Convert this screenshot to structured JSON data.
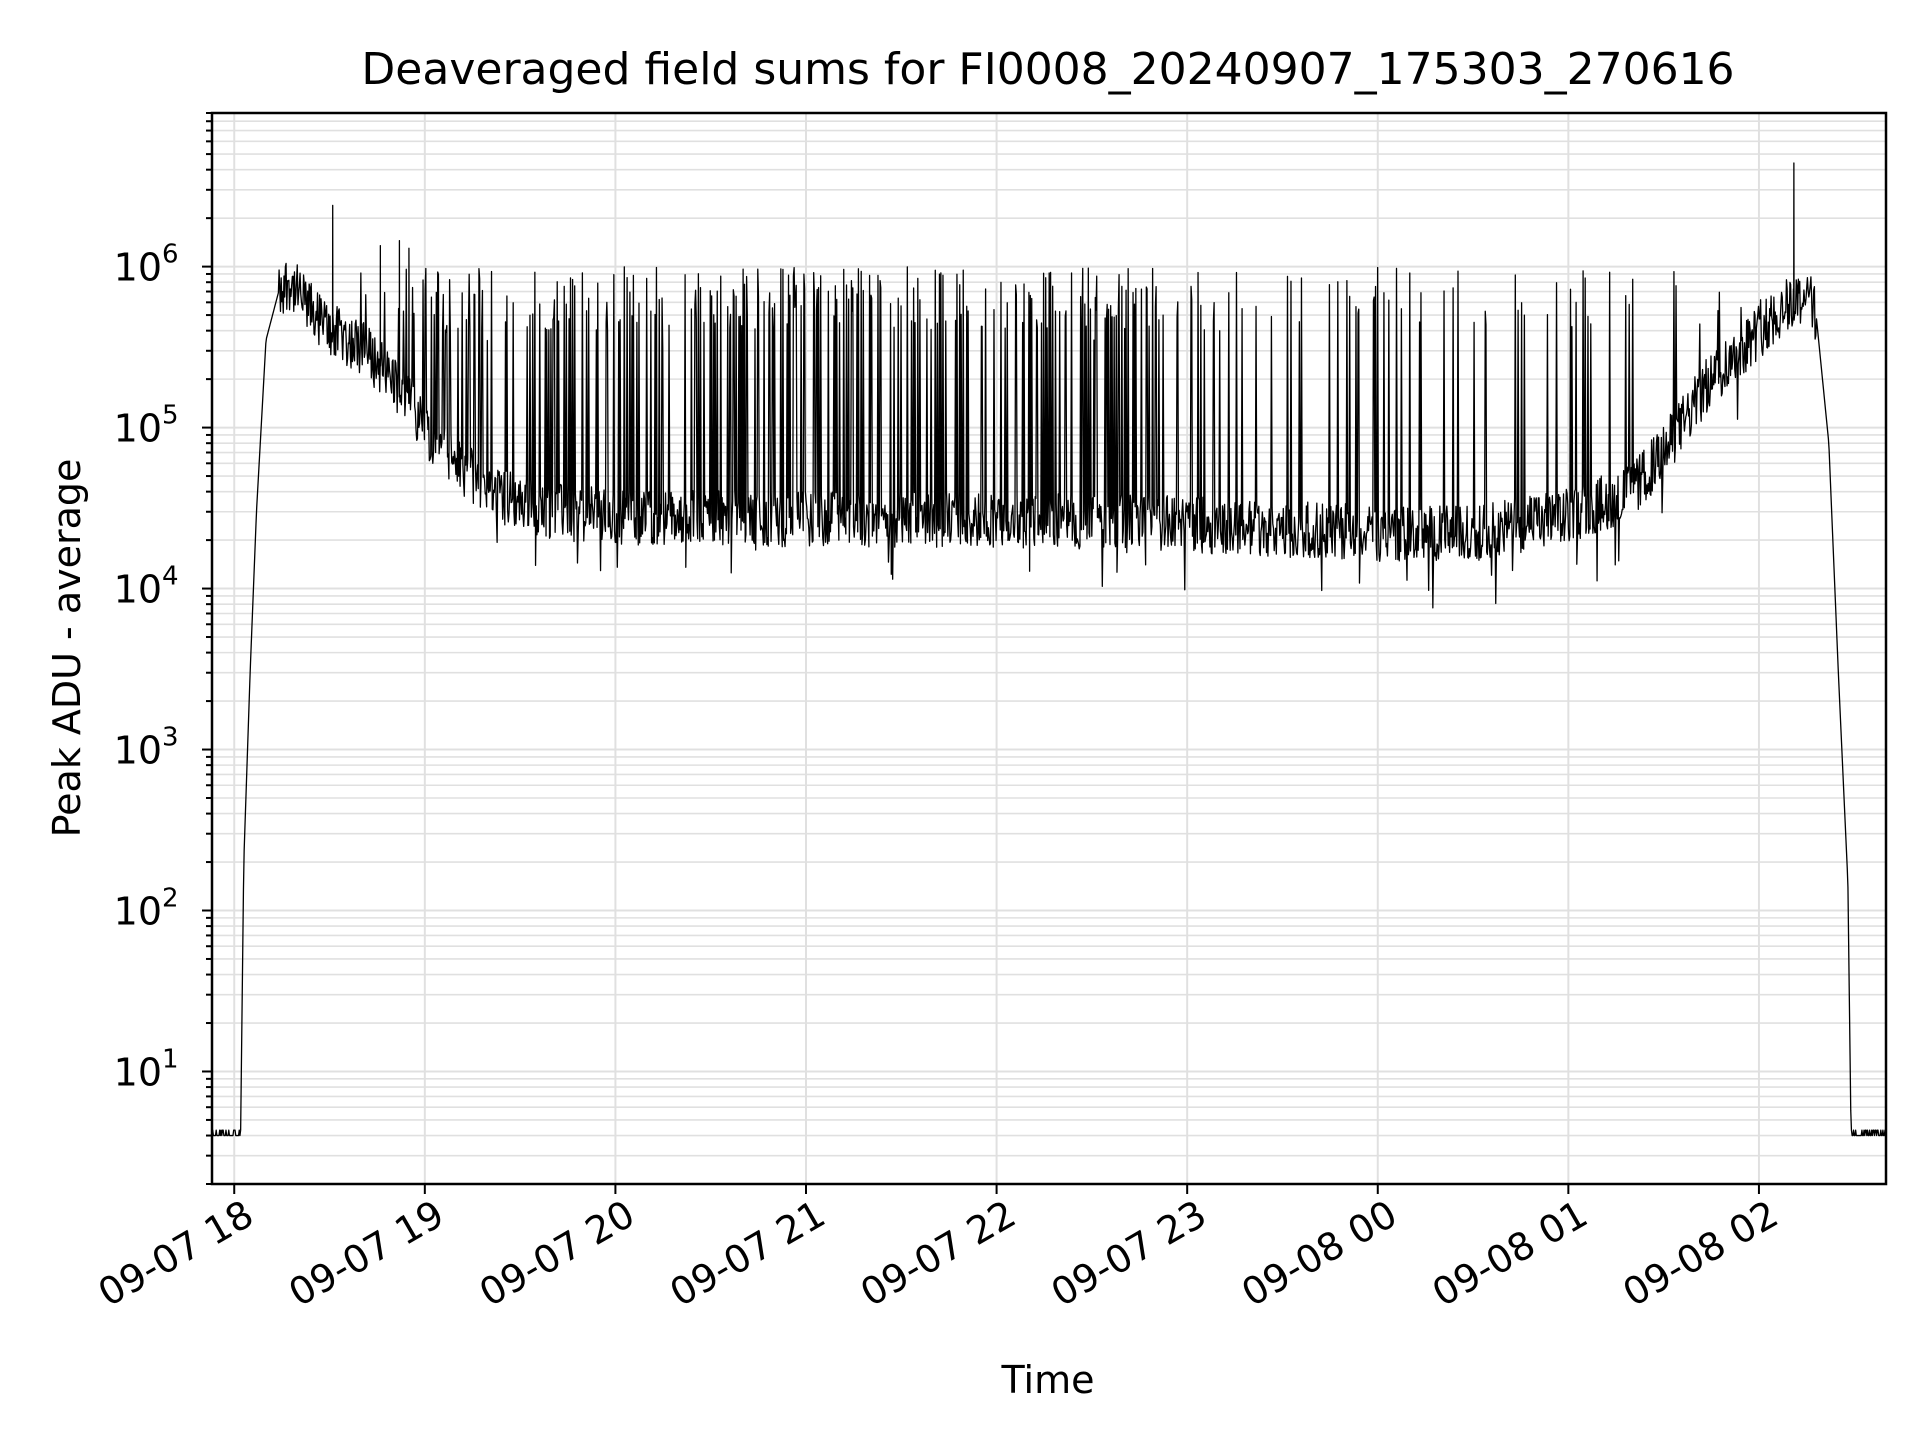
{
  "chart_data": {
    "type": "line",
    "title": "Deaveraged field sums for FI0008_20240907_175303_270616",
    "xlabel": "Time",
    "ylabel": "Peak ADU - average",
    "yscale": "log",
    "grid": true,
    "line_color": "#000000",
    "grid_color": "#e0e0e0",
    "x_ticks": [
      "09-07 18",
      "09-07 19",
      "09-07 20",
      "09-07 21",
      "09-07 22",
      "09-07 23",
      "09-08 00",
      "09-08 01",
      "09-08 02"
    ],
    "y_ticks": [
      {
        "value": 10,
        "base": "10",
        "exp": "1"
      },
      {
        "value": 100,
        "base": "10",
        "exp": "2"
      },
      {
        "value": 1000,
        "base": "10",
        "exp": "3"
      },
      {
        "value": 10000,
        "base": "10",
        "exp": "4"
      },
      {
        "value": 100000,
        "base": "10",
        "exp": "5"
      },
      {
        "value": 1000000,
        "base": "10",
        "exp": "6"
      }
    ],
    "xlim": [
      "2024-09-07 17:53",
      "2024-09-08 02:40"
    ],
    "ylim": [
      2,
      9000000
    ],
    "series": [
      {
        "name": "",
        "baseline": 4,
        "envelope": [
          [
            "2024-09-07 17:53",
            4
          ],
          [
            "2024-09-07 18:02",
            4
          ],
          [
            "2024-09-07 18:03",
            200
          ],
          [
            "2024-09-07 18:05",
            3000
          ],
          [
            "2024-09-07 18:07",
            30000
          ],
          [
            "2024-09-07 18:10",
            350000
          ],
          [
            "2024-09-07 18:14",
            700000
          ],
          [
            "2024-09-07 18:17",
            820000
          ],
          [
            "2024-09-07 18:22",
            600000
          ],
          [
            "2024-09-07 18:30",
            400000
          ],
          [
            "2024-09-07 18:40",
            320000
          ],
          [
            "2024-09-07 18:50",
            200000
          ],
          [
            "2024-09-07 19:00",
            100000
          ],
          [
            "2024-09-07 19:10",
            60000
          ],
          [
            "2024-09-07 19:20",
            40000
          ],
          [
            "2024-09-07 19:40",
            30000
          ],
          [
            "2024-09-07 20:00",
            28000
          ],
          [
            "2024-09-07 21:00",
            27000
          ],
          [
            "2024-09-07 22:00",
            27000
          ],
          [
            "2024-09-07 23:00",
            25000
          ],
          [
            "2024-09-08 00:00",
            22000
          ],
          [
            "2024-09-08 00:30",
            22000
          ],
          [
            "2024-09-08 01:00",
            28000
          ],
          [
            "2024-09-08 01:20",
            40000
          ],
          [
            "2024-09-08 01:30",
            70000
          ],
          [
            "2024-09-08 01:45",
            200000
          ],
          [
            "2024-09-08 02:00",
            400000
          ],
          [
            "2024-09-08 02:10",
            600000
          ],
          [
            "2024-09-08 02:15",
            680000
          ],
          [
            "2024-09-08 02:18",
            500000
          ],
          [
            "2024-09-08 02:22",
            80000
          ],
          [
            "2024-09-08 02:25",
            3000
          ],
          [
            "2024-09-08 02:28",
            150
          ],
          [
            "2024-09-08 02:29",
            4
          ],
          [
            "2024-09-08 02:40",
            4
          ]
        ],
        "spikes": [
          [
            "2024-09-07 18:31",
            2400000
          ],
          [
            "2024-09-07 18:46",
            1350000
          ],
          [
            "2024-09-07 18:52",
            1450000
          ],
          [
            "2024-09-07 18:55",
            1300000
          ],
          [
            "2024-09-08 02:11",
            4400000
          ]
        ]
      }
    ]
  }
}
